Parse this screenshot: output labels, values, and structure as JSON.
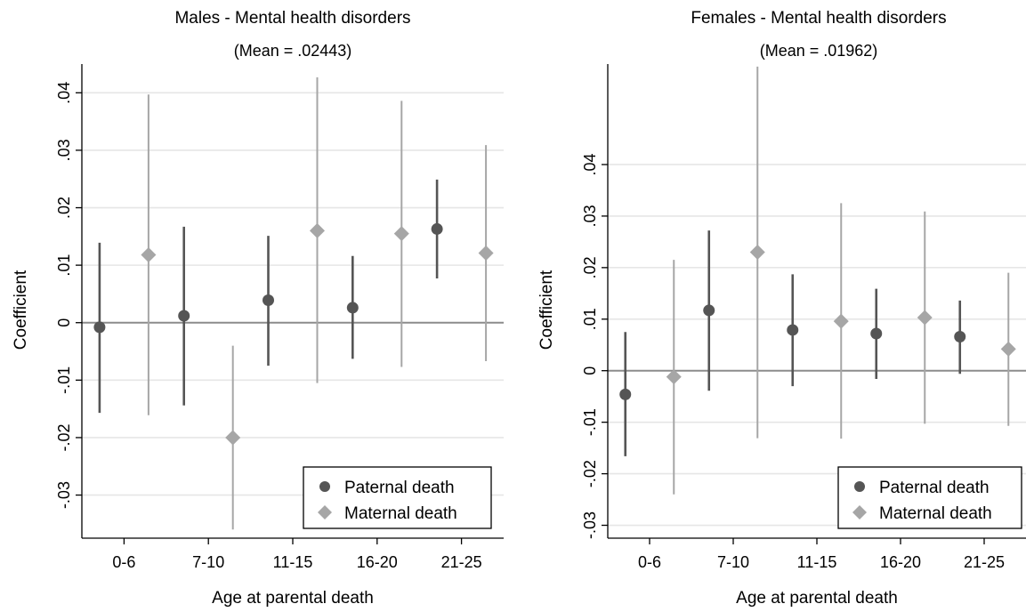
{
  "colors": {
    "paternal": "#555555",
    "maternal": "#a6a6a6",
    "zero_line": "#8c8c8c",
    "grid": "#e6e6e6"
  },
  "chart_data": [
    {
      "type": "scatter",
      "title": "Males - Mental health disorders",
      "subtitle": "(Mean = .02443)",
      "xlabel": "Age at parental death",
      "ylabel": "Coefficient",
      "categories": [
        "0-6",
        "7-10",
        "11-15",
        "16-20",
        "21-25"
      ],
      "ylim": [
        -0.0375,
        0.045
      ],
      "yticks": [
        -0.03,
        -0.02,
        -0.01,
        0,
        0.01,
        0.02,
        0.03,
        0.04
      ],
      "ytick_labels": [
        "-.03",
        "-.02",
        "-.01",
        "0",
        ".01",
        ".02",
        ".03",
        ".04"
      ],
      "grid": true,
      "legend_position": "bottom-right",
      "series": [
        {
          "name": "Paternal death",
          "marker": "circle",
          "values": [
            -0.0008,
            0.0012,
            0.0039,
            0.0026,
            0.0163
          ],
          "ci_low": [
            -0.0157,
            -0.0144,
            -0.0075,
            -0.0063,
            0.0077
          ],
          "ci_high": [
            0.0139,
            0.0167,
            0.0151,
            0.0116,
            0.0249
          ]
        },
        {
          "name": "Maternal death",
          "marker": "diamond",
          "values": [
            0.0118,
            -0.02,
            0.016,
            0.0155,
            0.0121
          ],
          "ci_low": [
            -0.0161,
            -0.036,
            -0.0105,
            -0.0077,
            -0.0067
          ],
          "ci_high": [
            0.0397,
            -0.004,
            0.0427,
            0.0386,
            0.0309
          ]
        }
      ]
    },
    {
      "type": "scatter",
      "title": "Females - Mental health disorders",
      "subtitle": "(Mean = .01962)",
      "xlabel": "Age at parental death",
      "ylabel": "Coefficient",
      "categories": [
        "0-6",
        "7-10",
        "11-15",
        "16-20",
        "21-25"
      ],
      "ylim": [
        -0.0325,
        0.0595
      ],
      "yticks": [
        -0.03,
        -0.02,
        -0.01,
        0,
        0.01,
        0.02,
        0.03,
        0.04
      ],
      "ytick_labels": [
        "-.03",
        "-.02",
        "-.01",
        "0",
        ".01",
        ".02",
        ".03",
        ".04"
      ],
      "grid": true,
      "legend_position": "bottom-right",
      "series": [
        {
          "name": "Paternal death",
          "marker": "circle",
          "values": [
            -0.0046,
            0.0117,
            0.0079,
            0.0072,
            0.0066
          ],
          "ci_low": [
            -0.0166,
            -0.0039,
            -0.003,
            -0.0016,
            -0.0006
          ],
          "ci_high": [
            0.0075,
            0.0272,
            0.0187,
            0.0159,
            0.0136
          ]
        },
        {
          "name": "Maternal death",
          "marker": "diamond",
          "values": [
            -0.0012,
            0.023,
            0.0096,
            0.0103,
            0.0042
          ],
          "ci_low": [
            -0.024,
            -0.0131,
            -0.0132,
            -0.0103,
            -0.0107
          ],
          "ci_high": [
            0.0215,
            0.059,
            0.0325,
            0.0309,
            0.019
          ]
        }
      ]
    }
  ]
}
